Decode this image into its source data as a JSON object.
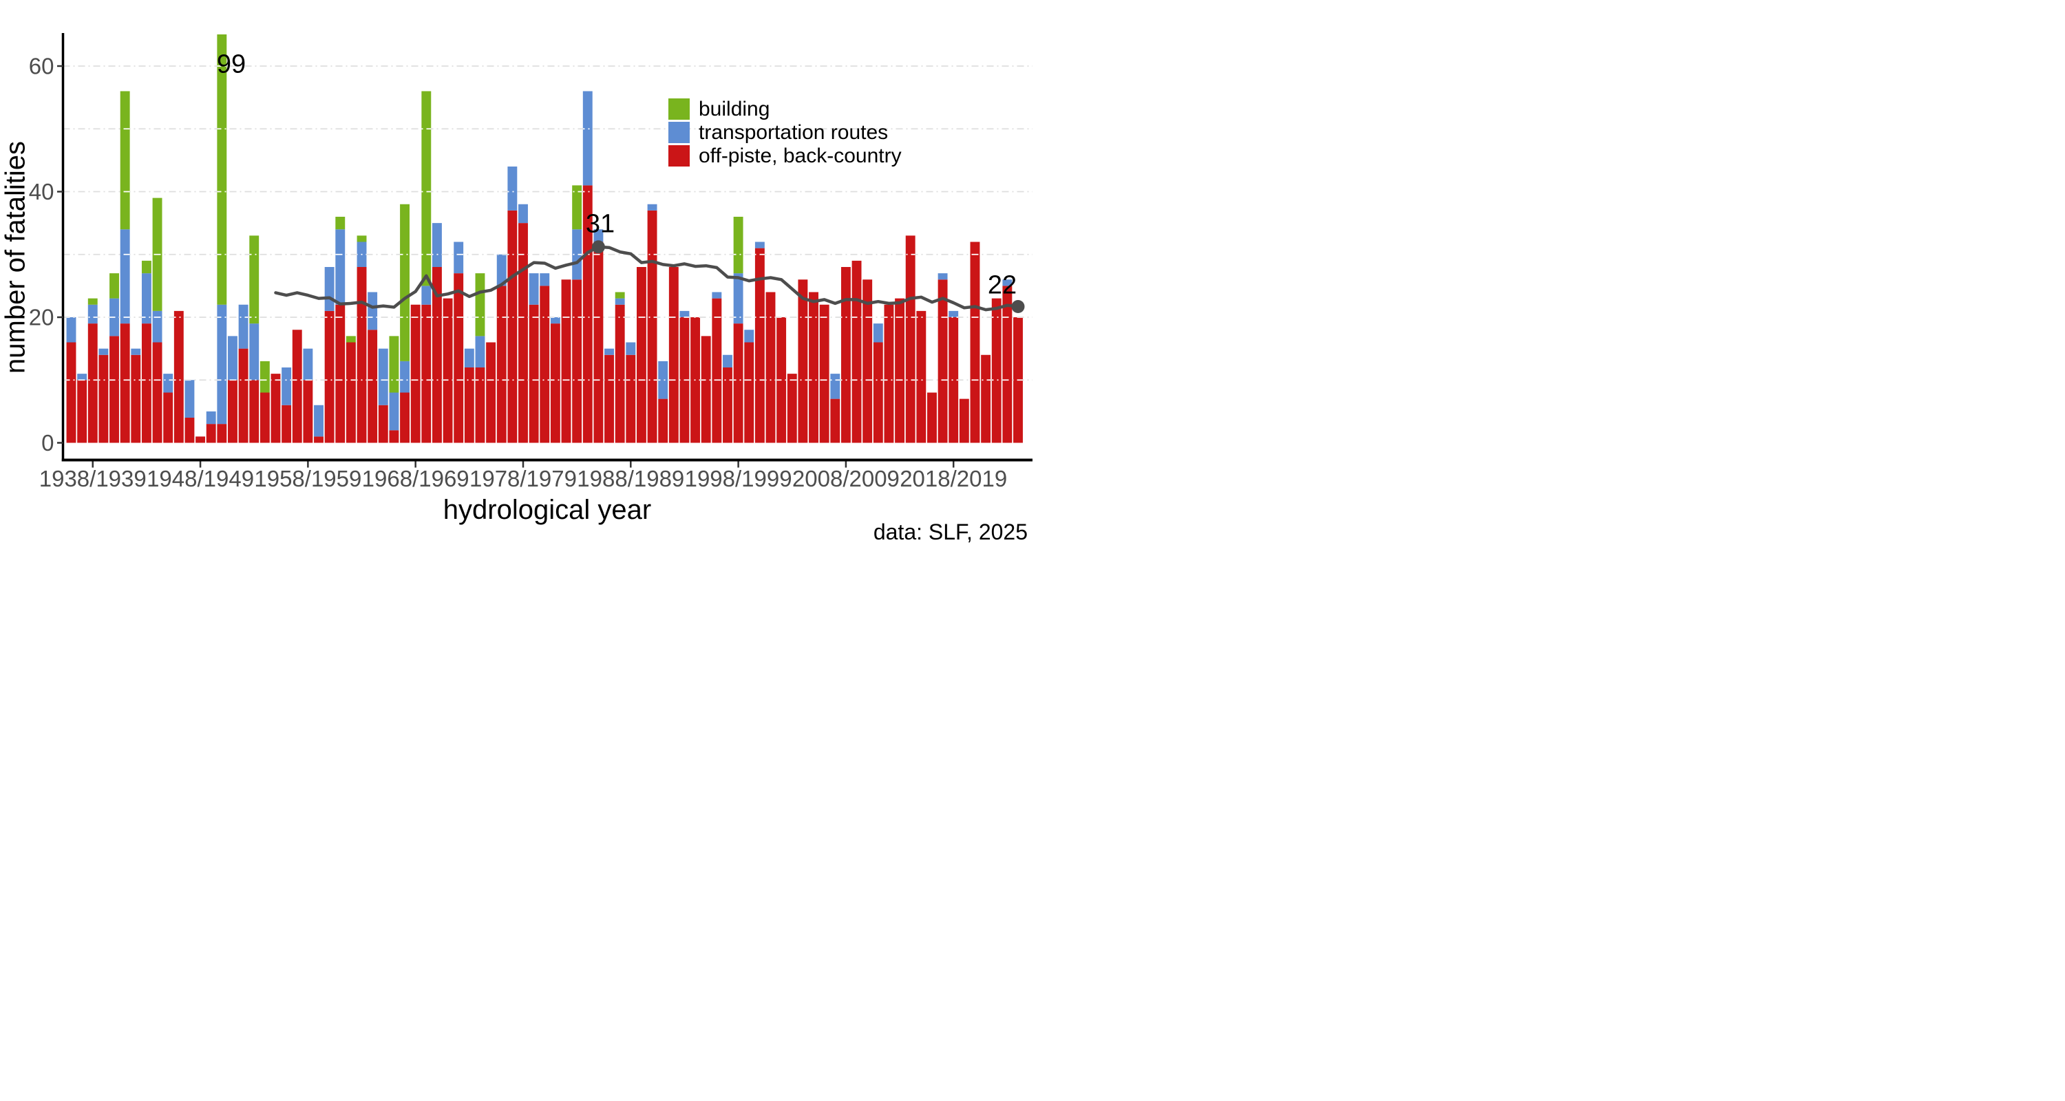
{
  "chart_data": {
    "type": "bar",
    "stacked": true,
    "xlabel": "hydrological year",
    "ylabel": "number of fatalities",
    "caption": "data: SLF, 2025",
    "ylim": [
      0,
      66
    ],
    "yticks": [
      0,
      20,
      40,
      60
    ],
    "gridlines_every": 10,
    "legend_position": "inside-top-right",
    "colors": {
      "background": "#ffffff",
      "grid": "#dedede",
      "grid_on_bars": "#ffffff",
      "axis": "#000000",
      "tick_text": "#4d4d4d",
      "trend": "#4d4d4d"
    },
    "categories": [
      "1936/37",
      "1937/38",
      "1938/39",
      "1939/40",
      "1940/41",
      "1941/42",
      "1942/43",
      "1943/44",
      "1944/45",
      "1945/46",
      "1946/47",
      "1947/48",
      "1948/49",
      "1949/50",
      "1950/51",
      "1951/52",
      "1952/53",
      "1953/54",
      "1954/55",
      "1955/56",
      "1956/57",
      "1957/58",
      "1958/59",
      "1959/60",
      "1960/61",
      "1961/62",
      "1962/63",
      "1963/64",
      "1964/65",
      "1965/66",
      "1966/67",
      "1967/68",
      "1968/69",
      "1969/70",
      "1970/71",
      "1971/72",
      "1972/73",
      "1973/74",
      "1974/75",
      "1975/76",
      "1976/77",
      "1977/78",
      "1978/79",
      "1979/80",
      "1980/81",
      "1981/82",
      "1982/83",
      "1983/84",
      "1984/85",
      "1985/86",
      "1986/87",
      "1987/88",
      "1988/89",
      "1989/90",
      "1990/91",
      "1991/92",
      "1992/93",
      "1993/94",
      "1994/95",
      "1995/96",
      "1996/97",
      "1997/98",
      "1998/99",
      "1999/00",
      "2000/01",
      "2001/02",
      "2002/03",
      "2003/04",
      "2004/05",
      "2005/06",
      "2006/07",
      "2007/08",
      "2008/09",
      "2009/10",
      "2010/11",
      "2011/12",
      "2012/13",
      "2013/14",
      "2014/15",
      "2015/16",
      "2016/17",
      "2017/18",
      "2018/19",
      "2019/20",
      "2020/21",
      "2021/22",
      "2022/23",
      "2023/24",
      "2024/25"
    ],
    "x_tick_labels": [
      "1938/1939",
      "1948/1949",
      "1958/1959",
      "1968/1969",
      "1978/1979",
      "1988/1989",
      "1998/1999",
      "2008/2009",
      "2018/2019"
    ],
    "x_tick_category_indices": [
      2,
      12,
      22,
      32,
      42,
      52,
      62,
      72,
      82
    ],
    "series": [
      {
        "name": "off-piste, back-country",
        "color": "#cb1517",
        "values": [
          16,
          10,
          19,
          14,
          17,
          19,
          14,
          19,
          16,
          8,
          21,
          4,
          1,
          3,
          3,
          10,
          15,
          10,
          8,
          11,
          6,
          18,
          10,
          1,
          21,
          22,
          16,
          28,
          18,
          6,
          2,
          8,
          22,
          22,
          28,
          23,
          27,
          12,
          12,
          16,
          25,
          37,
          35,
          22,
          25,
          19,
          26,
          26,
          41,
          32,
          14,
          22,
          14,
          28,
          37,
          7,
          28,
          20,
          20,
          17,
          23,
          12,
          19,
          16,
          31,
          24,
          20,
          11,
          26,
          24,
          22,
          7,
          28,
          29,
          26,
          16,
          22,
          23,
          33,
          21,
          8,
          26,
          20,
          7,
          32,
          14,
          23,
          25,
          20
        ]
      },
      {
        "name": "transportation routes",
        "color": "#5e8dd3",
        "values": [
          4,
          1,
          3,
          1,
          6,
          15,
          1,
          8,
          5,
          3,
          0,
          6,
          0,
          2,
          19,
          7,
          7,
          9,
          0,
          0,
          6,
          0,
          5,
          5,
          7,
          12,
          0,
          4,
          6,
          9,
          6,
          5,
          0,
          3,
          7,
          0,
          5,
          3,
          5,
          0,
          5,
          7,
          3,
          5,
          2,
          1,
          0,
          8,
          15,
          2,
          1,
          1,
          2,
          0,
          1,
          6,
          0,
          1,
          0,
          0,
          1,
          2,
          8,
          2,
          1,
          0,
          0,
          0,
          0,
          0,
          0,
          4,
          0,
          0,
          0,
          3,
          0,
          0,
          0,
          0,
          0,
          1,
          1,
          0,
          0,
          0,
          0,
          1,
          0
        ]
      },
      {
        "name": "building",
        "color": "#79b41e",
        "values": [
          0,
          0,
          1,
          0,
          4,
          22,
          0,
          2,
          18,
          0,
          0,
          0,
          0,
          0,
          77,
          0,
          0,
          14,
          5,
          0,
          0,
          0,
          0,
          0,
          0,
          2,
          1,
          1,
          0,
          0,
          9,
          25,
          0,
          31,
          0,
          0,
          0,
          0,
          10,
          0,
          0,
          0,
          0,
          0,
          0,
          0,
          0,
          7,
          0,
          0,
          0,
          1,
          0,
          0,
          0,
          0,
          0,
          0,
          0,
          0,
          0,
          0,
          9,
          0,
          0,
          0,
          0,
          0,
          0,
          0,
          0,
          0,
          0,
          0,
          0,
          0,
          0,
          0,
          0,
          0,
          0,
          0,
          0,
          0,
          0,
          0,
          0,
          0,
          0
        ]
      }
    ],
    "totals_note": "bar for 1950/51 totals 99 and is clipped at the top of the panel",
    "trend_line": {
      "color": "#4d4d4d",
      "start_category_index": 19,
      "values": [
        23.9,
        23.5,
        23.9,
        23.5,
        23.0,
        23.1,
        22.1,
        22.2,
        22.4,
        21.6,
        21.8,
        21.6,
        23.0,
        24.1,
        26.6,
        23.4,
        23.7,
        24.2,
        23.3,
        24.0,
        24.3,
        25.2,
        26.5,
        27.6,
        28.7,
        28.6,
        27.8,
        28.3,
        28.7,
        30.3,
        31.2,
        31.1,
        30.4,
        30.1,
        28.7,
        28.9,
        28.4,
        28.2,
        28.5,
        28.1,
        28.2,
        27.9,
        26.4,
        26.3,
        25.8,
        26.1,
        26.3,
        26.0,
        24.5,
        23.0,
        22.5,
        22.8,
        22.2,
        22.8,
        22.8,
        22.2,
        22.5,
        22.2,
        22.3,
        23.0,
        23.2,
        22.4,
        23.0,
        22.3,
        21.5,
        21.7,
        21.2,
        21.4,
        21.9,
        21.7
      ],
      "markers": [
        {
          "category_index": 49,
          "value": 31.2
        },
        {
          "category_index": 88,
          "value": 21.7
        }
      ]
    },
    "annotations": [
      {
        "text": "99",
        "category": "1950/51"
      },
      {
        "text": "31",
        "category": "1985/86"
      },
      {
        "text": "22",
        "category": "2024/25"
      }
    ],
    "legend": [
      {
        "label": "building",
        "color": "#79b41e"
      },
      {
        "label": "transportation routes",
        "color": "#5e8dd3"
      },
      {
        "label": "off-piste, back-country",
        "color": "#cb1517"
      }
    ]
  }
}
